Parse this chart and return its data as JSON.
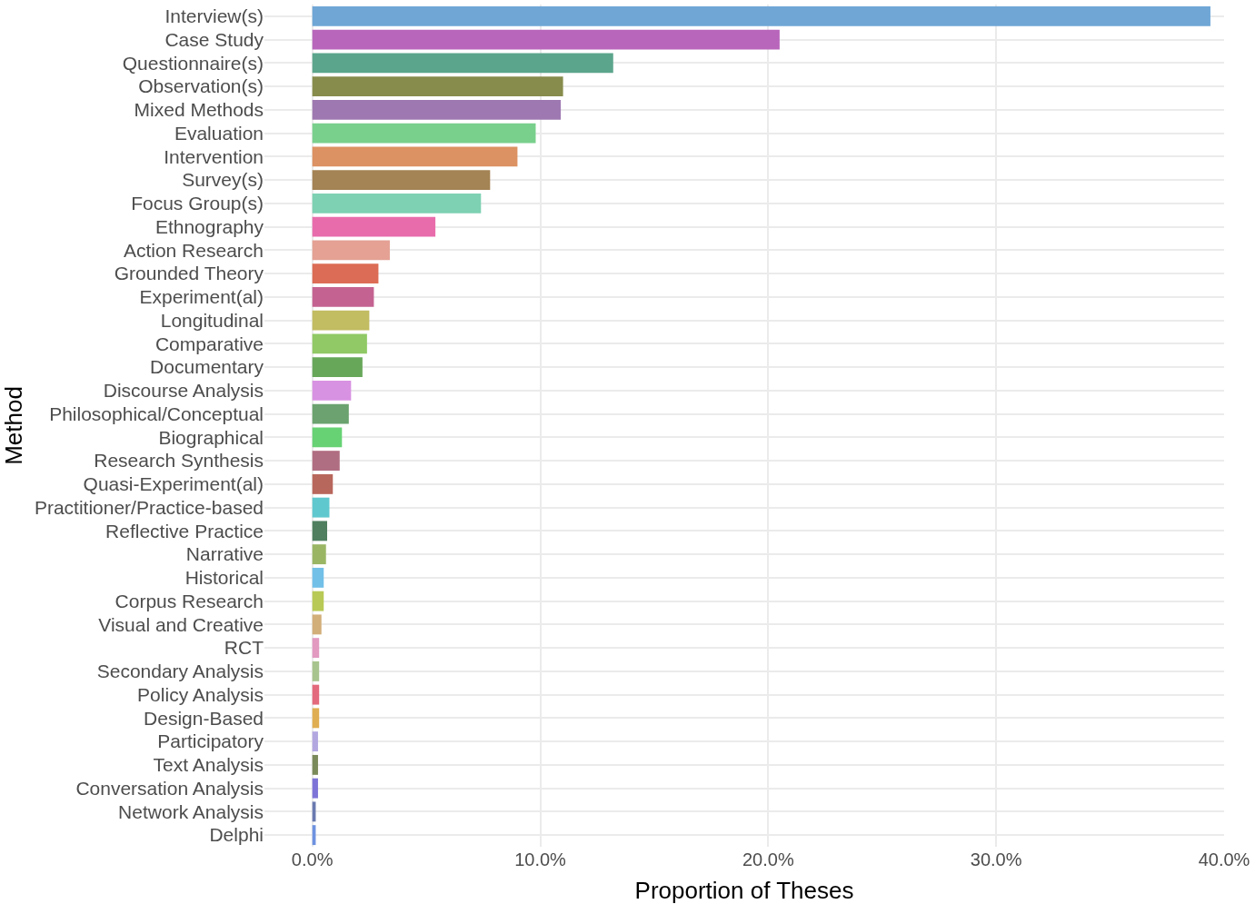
{
  "chart_data": {
    "type": "bar",
    "orientation": "horizontal",
    "xlabel": "Proportion of Theses",
    "ylabel": "Method",
    "categories": [
      "Interview(s)",
      "Case Study",
      "Questionnaire(s)",
      "Observation(s)",
      "Mixed Methods",
      "Evaluation",
      "Intervention",
      "Survey(s)",
      "Focus Group(s)",
      "Ethnography",
      "Action Research",
      "Grounded Theory",
      "Experiment(al)",
      "Longitudinal",
      "Comparative",
      "Documentary",
      "Discourse Analysis",
      "Philosophical/Conceptual",
      "Biographical",
      "Research Synthesis",
      "Quasi-Experiment(al)",
      "Practitioner/Practice-based",
      "Reflective Practice",
      "Narrative",
      "Historical",
      "Corpus Research",
      "Visual and Creative",
      "RCT",
      "Secondary Analysis",
      "Policy Analysis",
      "Design-Based",
      "Participatory",
      "Text Analysis",
      "Conversation Analysis",
      "Network Analysis",
      "Delphi"
    ],
    "values": [
      39.4,
      20.5,
      13.2,
      11.0,
      10.9,
      9.8,
      9.0,
      7.8,
      7.4,
      5.4,
      3.4,
      2.9,
      2.7,
      2.5,
      2.4,
      2.2,
      1.7,
      1.6,
      1.3,
      1.2,
      0.9,
      0.75,
      0.65,
      0.6,
      0.5,
      0.5,
      0.4,
      0.3,
      0.3,
      0.3,
      0.3,
      0.25,
      0.25,
      0.25,
      0.15,
      0.15
    ],
    "colors": [
      "#6fa6d6",
      "#b866bb",
      "#5ba58c",
      "#878c4c",
      "#9e79b1",
      "#79d08c",
      "#dc9262",
      "#a48354",
      "#7ed1b3",
      "#e86cac",
      "#e4a194",
      "#dc6c55",
      "#c46391",
      "#c2bc62",
      "#90c965",
      "#67a75a",
      "#d892e2",
      "#6ba26f",
      "#66d274",
      "#b06e82",
      "#b8675c",
      "#5fc8ce",
      "#4f7f5f",
      "#9ab665",
      "#72c0e8",
      "#b8c955",
      "#d2ae78",
      "#e29ac1",
      "#a8c48e",
      "#e36a7c",
      "#e0ae52",
      "#b3a7e0",
      "#7b8a5a",
      "#7e74d8",
      "#6a7ab0",
      "#6e92e0"
    ],
    "xlim": [
      -2.1,
      40
    ],
    "xticks": [
      {
        "value": 0,
        "label": "0.0%"
      },
      {
        "value": 10,
        "label": "10.0%"
      },
      {
        "value": 20,
        "label": "20.0%"
      },
      {
        "value": 30,
        "label": "30.0%"
      },
      {
        "value": 40,
        "label": "40.0%"
      }
    ],
    "grid": true
  }
}
